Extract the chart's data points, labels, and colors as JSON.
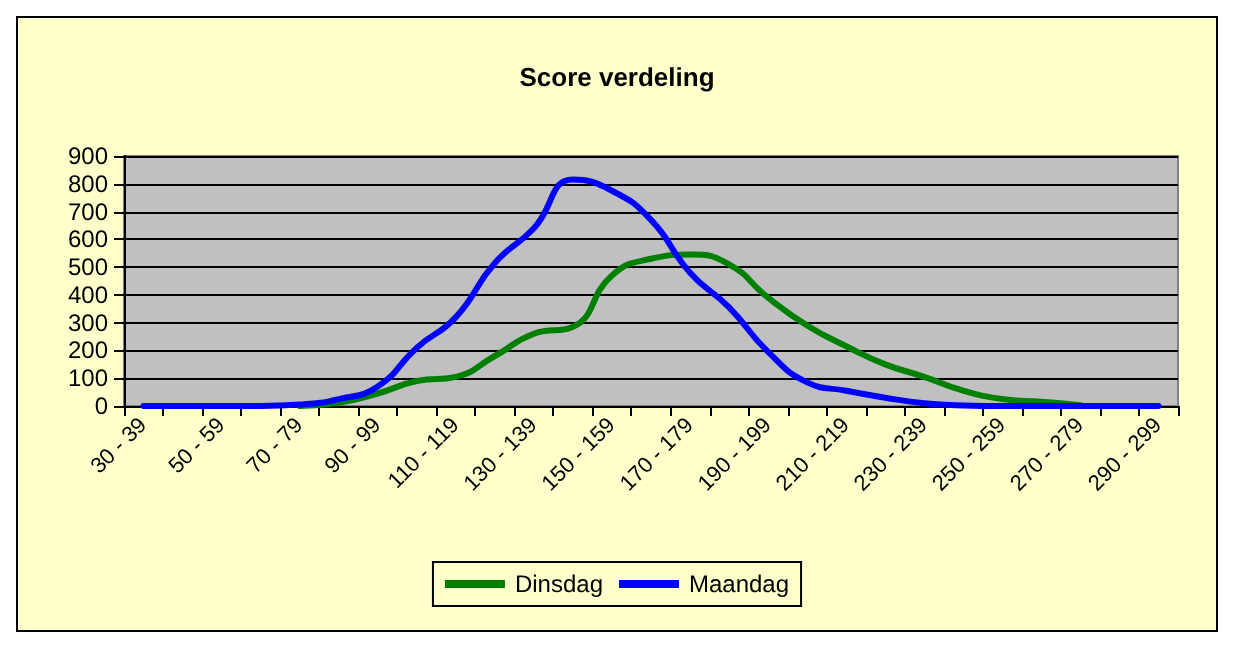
{
  "chart_data": {
    "type": "line",
    "title": "Score verdeling",
    "categories": [
      "30 - 39",
      null,
      "50 - 59",
      null,
      "70 - 79",
      null,
      "90 - 99",
      null,
      "110 - 119",
      null,
      "130 - 139",
      null,
      "150 - 159",
      null,
      "170 - 179",
      null,
      "190 - 199",
      null,
      "210 - 219",
      null,
      "230 - 239",
      null,
      "250 - 259",
      null,
      "270 - 279",
      null,
      "290 - 299"
    ],
    "series": [
      {
        "name": "Dinsdag",
        "color": "#008000",
        "values": [
          null,
          null,
          null,
          null,
          0,
          12,
          45,
          90,
          105,
          180,
          260,
          285,
          470,
          530,
          545,
          510,
          390,
          290,
          215,
          150,
          105,
          55,
          25,
          15,
          3,
          null,
          null
        ]
      },
      {
        "name": "Maandag",
        "color": "#0000ff",
        "values": [
          0,
          0,
          0,
          0,
          5,
          25,
          70,
          210,
          320,
          515,
          640,
          815,
          775,
          670,
          480,
          355,
          195,
          85,
          55,
          30,
          10,
          2,
          0,
          0,
          0,
          0,
          0
        ]
      }
    ],
    "ylim": [
      0,
      900
    ],
    "yticks": [
      0,
      100,
      200,
      300,
      400,
      500,
      600,
      700,
      800,
      900
    ],
    "grid": "y",
    "legend": "bottom",
    "marker": "none",
    "line_style": "solid"
  }
}
